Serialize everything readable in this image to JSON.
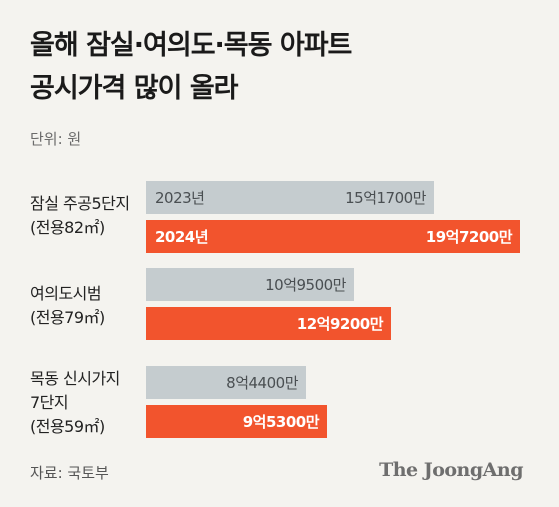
{
  "title_lines": [
    "올해 잠실·여의도·목동 아파트",
    "공시가격 많이 올라"
  ],
  "unit": "단위: 원",
  "source": "자료: 국토부",
  "logo_text": "The JoongAng",
  "colors": {
    "bar_2023": "#c5cccf",
    "bar_2024": "#f2542d",
    "background": "#f4f3ef"
  },
  "chart_data": {
    "type": "bar",
    "orientation": "horizontal",
    "categories": [
      {
        "lines": [
          "잠실 주공5단지",
          "(전용82㎡)"
        ]
      },
      {
        "lines": [
          "여의도시범",
          "(전용79㎡)"
        ]
      },
      {
        "lines": [
          "목동 신시가지",
          "7단지",
          "(전용59㎡)"
        ]
      }
    ],
    "series": [
      {
        "name": "2023년",
        "values": [
          1517000000,
          1095000000,
          844000000
        ],
        "labels": [
          "15억1700만",
          "10억9500만",
          "8억4400만"
        ]
      },
      {
        "name": "2024년",
        "values": [
          1972000000,
          1292000000,
          953000000
        ],
        "labels": [
          "19억7200만",
          "12억9200만",
          "9억5300만"
        ]
      }
    ],
    "xlim": [
      0,
      1972000000
    ]
  }
}
